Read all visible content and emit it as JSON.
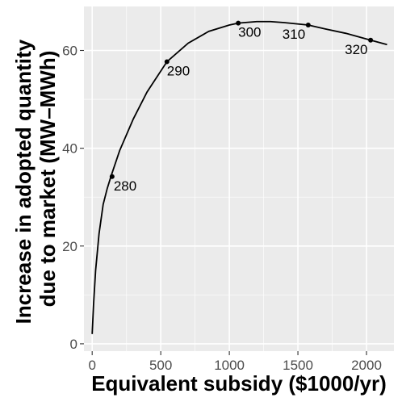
{
  "chart_data": {
    "type": "line",
    "xlabel": "Equivalent subsidy ($1000/yr)",
    "ylabel_lines": [
      "Increase in adopted quantity",
      "due to market (MW–MWh)"
    ],
    "xlim": [
      -60,
      2200
    ],
    "ylim": [
      -1.5,
      69
    ],
    "x_ticks": [
      0,
      500,
      1000,
      1500,
      2000
    ],
    "y_ticks": [
      0,
      20,
      40,
      60
    ],
    "x_tick_labels": [
      "0",
      "500",
      "1000",
      "1500",
      "2000"
    ],
    "y_tick_labels": [
      "0",
      "20",
      "40",
      "60"
    ],
    "grid": true,
    "background": "#ebebeb",
    "grid_major_color": "#ffffff",
    "line_color": "#000000",
    "curve": {
      "x": [
        0,
        10,
        25,
        50,
        80,
        110,
        140,
        200,
        300,
        400,
        545,
        700,
        850,
        1000,
        1065,
        1200,
        1300,
        1400,
        1575,
        1700,
        1850,
        2030,
        2150
      ],
      "y": [
        2,
        8,
        15,
        22.5,
        28.5,
        31.8,
        34.5,
        39.5,
        46,
        51.5,
        57.7,
        61.5,
        63.9,
        65.2,
        65.6,
        65.9,
        65.9,
        65.7,
        65.2,
        64.4,
        63.5,
        62.1,
        61.2
      ]
    },
    "points": [
      {
        "x": 145,
        "y": 34.2,
        "label": "280"
      },
      {
        "x": 545,
        "y": 57.7,
        "label": "290"
      },
      {
        "x": 1065,
        "y": 65.6,
        "label": "300"
      },
      {
        "x": 1575,
        "y": 65.2,
        "label": "310"
      },
      {
        "x": 2030,
        "y": 62.1,
        "label": "320"
      }
    ]
  }
}
